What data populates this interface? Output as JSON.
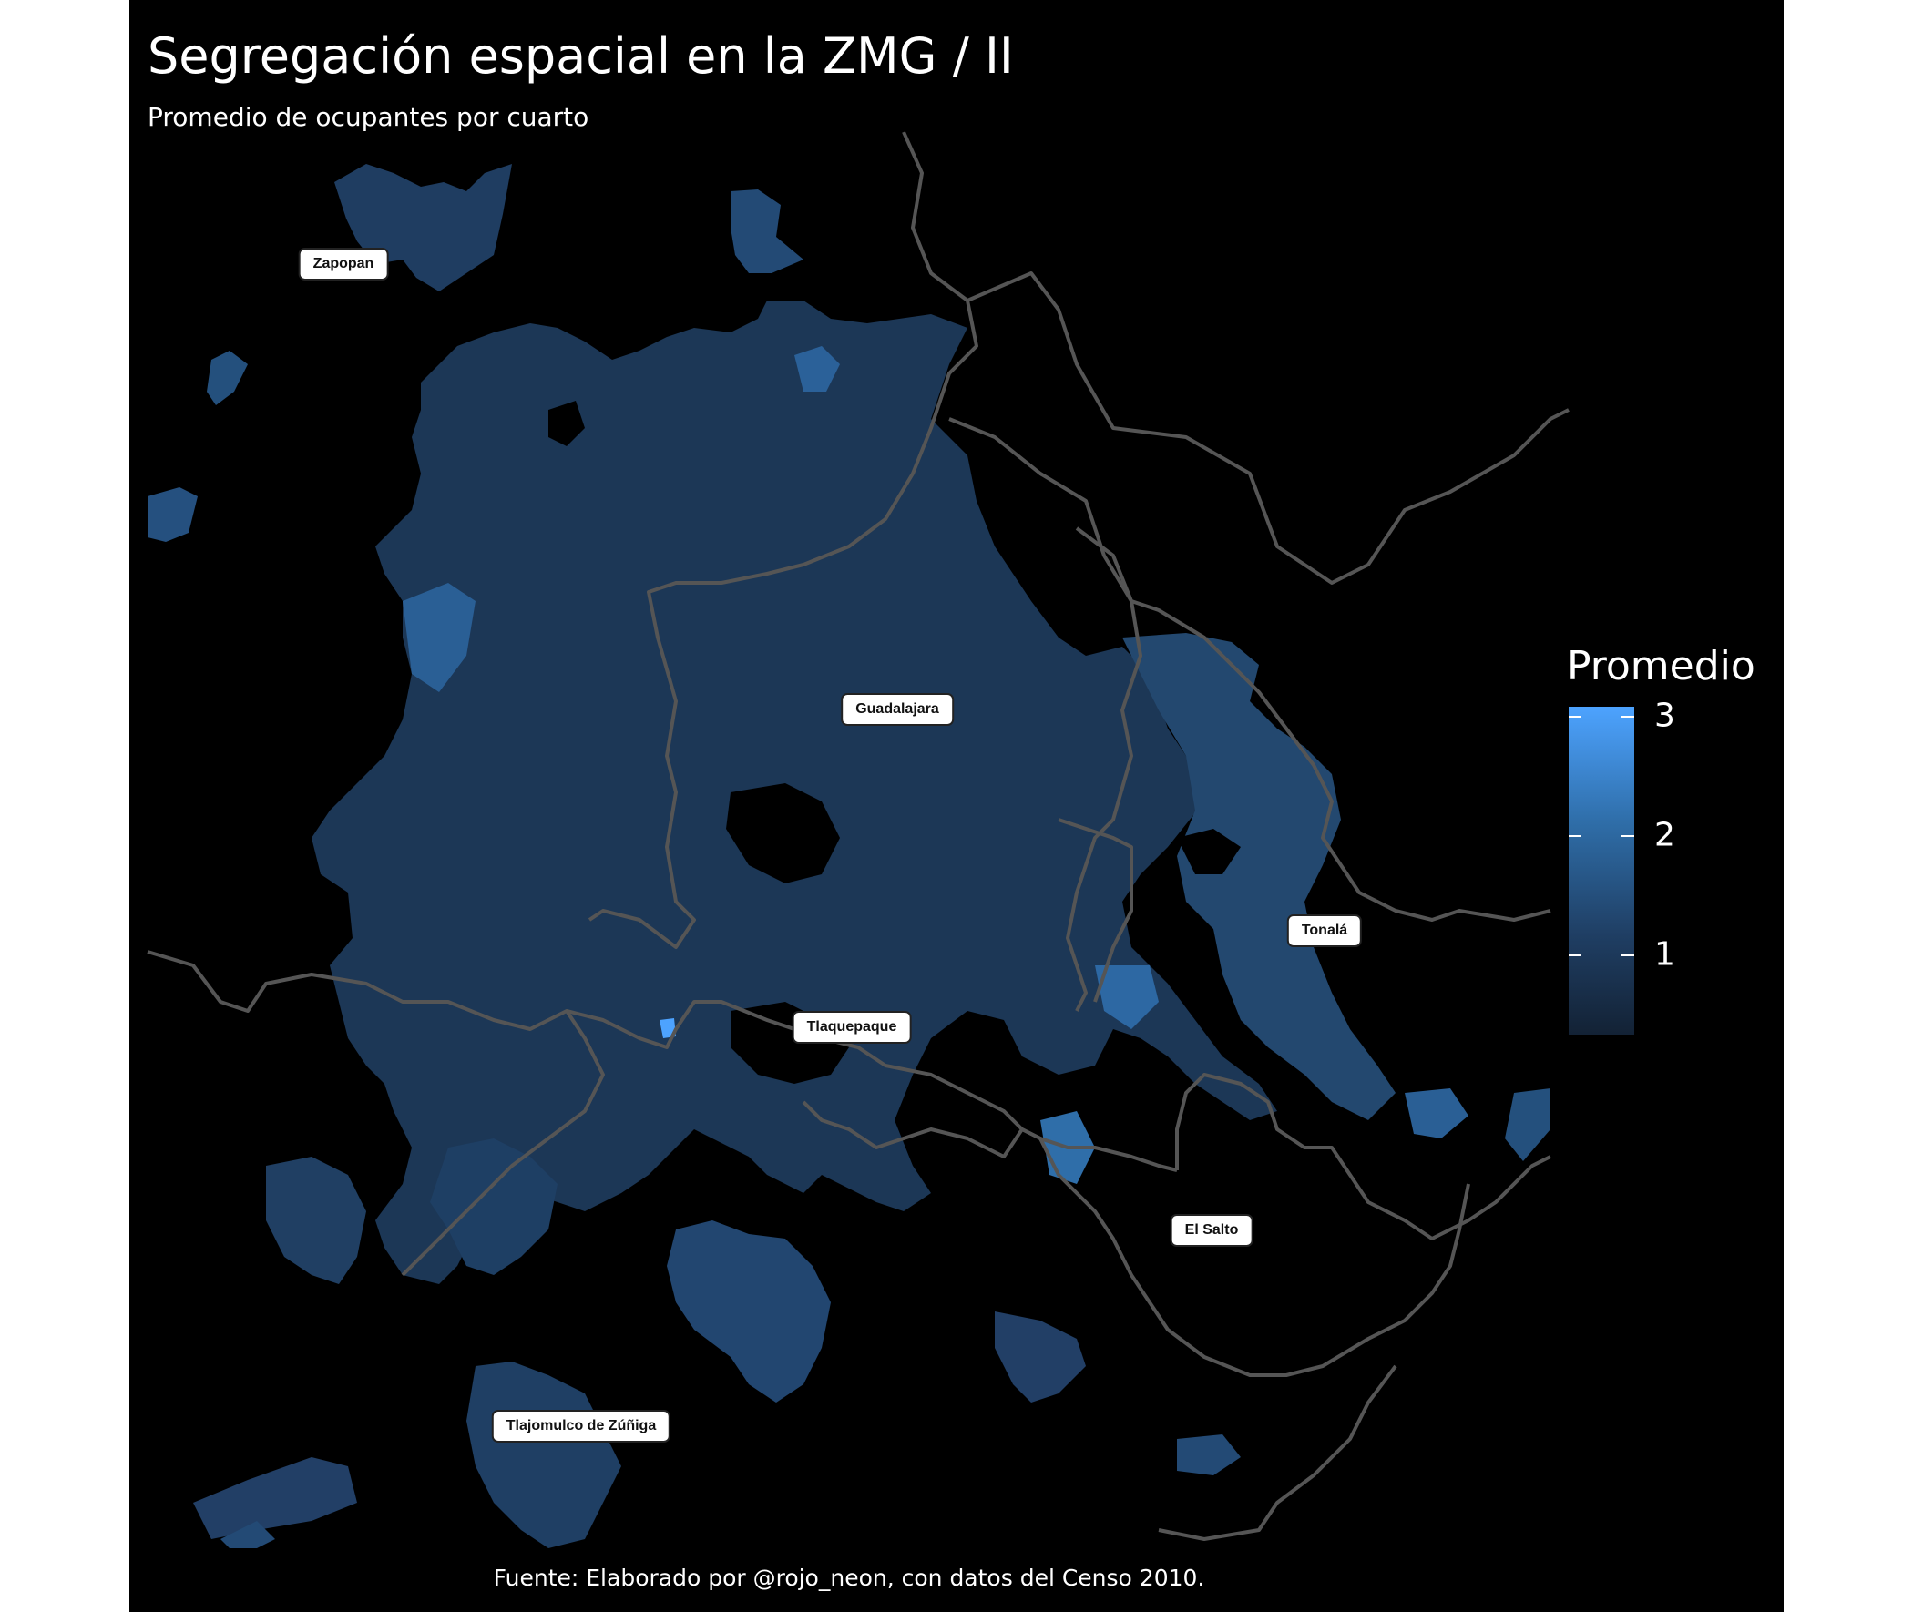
{
  "title": "Segregación espacial en la ZMG / II",
  "subtitle": "Promedio de ocupantes por cuarto",
  "caption": "Fuente: Elaborado por @rojo_neon, con datos del Censo 2010.",
  "legend": {
    "title": "Promedio",
    "ticks": [
      {
        "label": "3",
        "value": 3
      },
      {
        "label": "2",
        "value": 2
      },
      {
        "label": "1",
        "value": 1
      }
    ],
    "range": [
      0.35,
      3.0
    ],
    "colors": {
      "low": "#132235",
      "mid": "#2f6ea9",
      "high": "#4da3ff"
    }
  },
  "municipalities": [
    {
      "name": "Zapopan"
    },
    {
      "name": "Guadalajara"
    },
    {
      "name": "Tonalá"
    },
    {
      "name": "Tlaquepaque"
    },
    {
      "name": "El Salto"
    },
    {
      "name": "Tlajomulco de Zúñiga"
    }
  ],
  "colors": {
    "background": "#000000",
    "boundary": "#555555",
    "label_bg": "#ffffff"
  }
}
